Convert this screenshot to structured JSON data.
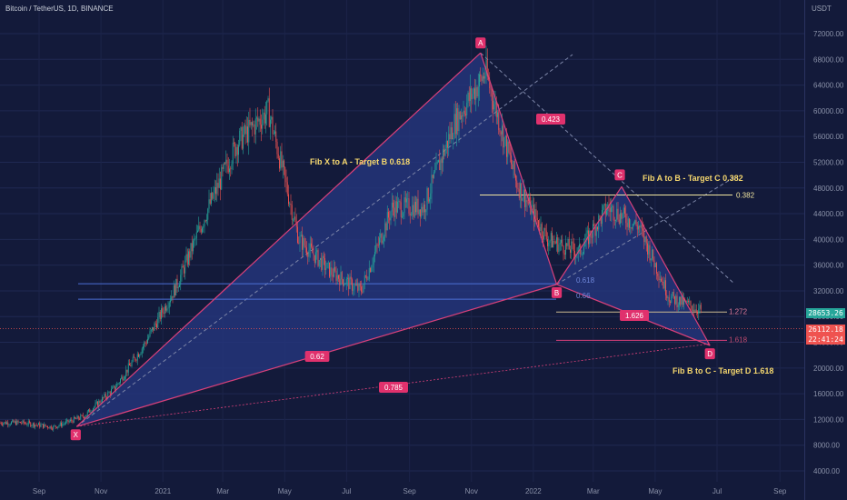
{
  "header": {
    "title": "Bitcoin / TetherUS, 1D, BINANCE",
    "unit": "USDT"
  },
  "price_tags": [
    {
      "label": "28653.26",
      "bg": "#26a69a"
    },
    {
      "label": "26112.18",
      "bg": "#ef5350"
    },
    {
      "label": "22:41:24",
      "bg": "#ef5350"
    }
  ],
  "colors": {
    "background": "#131a3a",
    "pattern_line": "#d9407a",
    "pattern_fill": "#25357a",
    "blue_level": "#4c6fd6",
    "yellow_level": "#f2e6a0",
    "annotation_text": "#f5d76e",
    "up_candle": "#26a69a",
    "down_candle": "#ef5350",
    "axis_text": "#8a91a8"
  },
  "chart_data": {
    "type": "line",
    "title": "Bitcoin / TetherUS, 1D, BINANCE",
    "ylabel": "USDT",
    "ylim": [
      2000,
      74000
    ],
    "y_ticks": [
      "4000.00",
      "8000.00",
      "12000.00",
      "16000.00",
      "20000.00",
      "24000.00",
      "28000.00",
      "32000.00",
      "36000.00",
      "40000.00",
      "44000.00",
      "48000.00",
      "52000.00",
      "56000.00",
      "60000.00",
      "64000.00",
      "68000.00",
      "72000.00"
    ],
    "x_ticks": [
      "Sep",
      "Nov",
      "2021",
      "Mar",
      "May",
      "Jul",
      "Sep",
      "Nov",
      "2022",
      "Mar",
      "May",
      "Jul",
      "Sep"
    ],
    "series": [
      {
        "x": [
          "2020-08",
          "2020-09",
          "2020-10",
          "2020-11",
          "2020-12",
          "2021-01",
          "2021-02",
          "2021-03",
          "2021-04",
          "2021-05",
          "2021-06",
          "2021-07",
          "2021-08",
          "2021-09",
          "2021-10",
          "2021-11",
          "2021-12",
          "2022-01",
          "2022-02",
          "2022-03",
          "2022-04",
          "2022-05",
          "2022-06"
        ],
        "values": [
          11500,
          10800,
          12500,
          17000,
          24000,
          33000,
          45000,
          55000,
          60000,
          40000,
          35000,
          32000,
          45000,
          45000,
          58000,
          66000,
          49000,
          40000,
          38000,
          45000,
          42000,
          31000,
          29000
        ]
      }
    ],
    "harmonic_points": [
      {
        "label": "X",
        "date": "2020-10-08",
        "price": 10900
      },
      {
        "label": "A",
        "date": "2021-11-10",
        "price": 69000
      },
      {
        "label": "B",
        "date": "2022-01-24",
        "price": 33000
      },
      {
        "label": "C",
        "date": "2022-03-29",
        "price": 48200
      },
      {
        "label": "D",
        "date": "2022-06-24",
        "price": 23500
      }
    ],
    "ratio_labels": [
      "0.62",
      "0.785",
      "0.423",
      "1.626"
    ],
    "levels": [
      {
        "label": "0.382",
        "price": 46900
      },
      {
        "label": "0.618",
        "price": 33100
      },
      {
        "label": "0.66",
        "price": 30700
      },
      {
        "label": "1.272",
        "price": 28700
      },
      {
        "label": "1.618",
        "price": 24300
      }
    ],
    "annotations": [
      "Fib X to A - Target B 0.618",
      "Fib A to B - Target C 0.382",
      "Fib B to C - Target D 1.618"
    ]
  }
}
